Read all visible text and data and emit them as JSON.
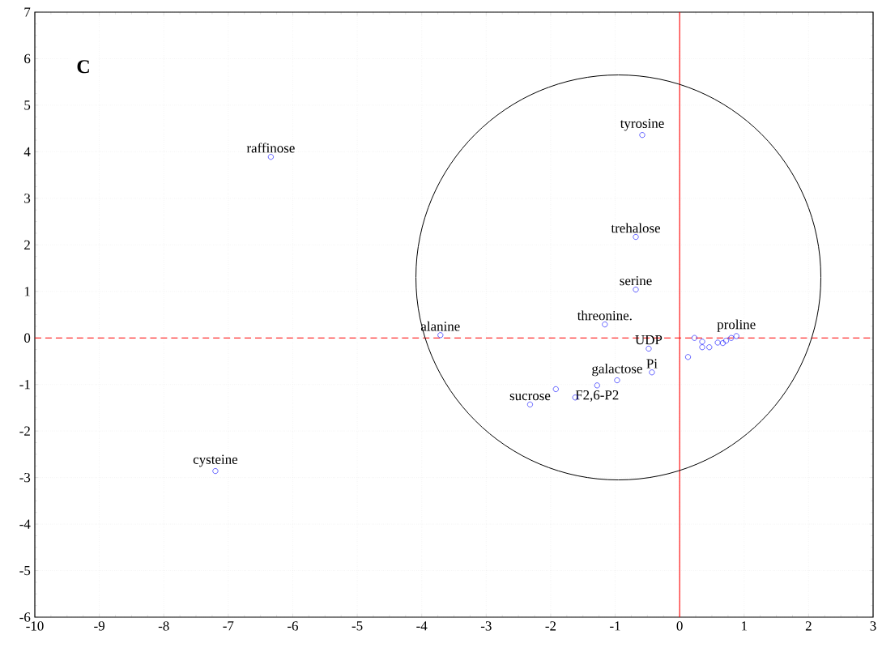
{
  "chart_data": {
    "type": "scatter",
    "title": "C",
    "x": [
      -6.34,
      -7.2,
      -0.58,
      -0.68,
      -0.68,
      -1.16,
      -3.71,
      -0.48,
      -0.43,
      0.13,
      -0.97,
      -1.28,
      -1.62,
      -1.92,
      -2.32,
      0.23,
      0.35,
      0.35,
      0.46,
      0.59,
      0.67,
      0.72,
      0.8,
      0.88
    ],
    "values": [
      3.89,
      -2.86,
      4.36,
      2.17,
      1.04,
      0.29,
      0.06,
      -0.23,
      -0.74,
      -0.41,
      -0.91,
      -1.02,
      -1.28,
      -1.1,
      -1.43,
      0.0,
      -0.08,
      -0.2,
      -0.2,
      -0.1,
      -0.11,
      -0.06,
      0.0,
      0.04
    ],
    "color": "#0000ff",
    "marker": "circle",
    "grid": true,
    "xlim": [
      -10,
      3
    ],
    "ylim": [
      -6,
      7
    ],
    "xticks": [
      -10,
      -9,
      -8,
      -7,
      -6,
      -5,
      -4,
      -3,
      -2,
      -1,
      0,
      1,
      2,
      3
    ],
    "yticks": [
      -6,
      -5,
      -4,
      -3,
      -2,
      -1,
      0,
      1,
      2,
      3,
      4,
      5,
      6,
      7
    ],
    "ref_lines": [
      {
        "axis": "y",
        "value": 0,
        "color": "#ff0000",
        "line_style": "dashed"
      },
      {
        "axis": "x",
        "value": 0,
        "color": "#ff0000",
        "line_style": "solid"
      }
    ],
    "annotations": [
      {
        "text": "raffinose",
        "x": -6.34,
        "y": 3.89
      },
      {
        "text": "cysteine",
        "x": -7.2,
        "y": -2.86
      },
      {
        "text": "tyrosine",
        "x": -0.58,
        "y": 4.36
      },
      {
        "text": "trehalose",
        "x": -0.68,
        "y": 2.17
      },
      {
        "text": "serine",
        "x": -0.68,
        "y": 1.04
      },
      {
        "text": "threonine.",
        "x": -1.16,
        "y": 0.29
      },
      {
        "text": "alanine",
        "x": -3.71,
        "y": 0.06
      },
      {
        "text": "UDP",
        "x": -0.48,
        "y": -0.23
      },
      {
        "text": "Pi",
        "x": -0.43,
        "y": -0.74
      },
      {
        "text": "galactose",
        "x": -0.97,
        "y": -0.91
      },
      {
        "text": "F2,6-P2",
        "x": -1.28,
        "y": -1.02
      },
      {
        "text": "sucrose",
        "x": -2.32,
        "y": -1.43
      },
      {
        "text": "proline",
        "x": 0.88,
        "y": 0.04
      }
    ]
  }
}
